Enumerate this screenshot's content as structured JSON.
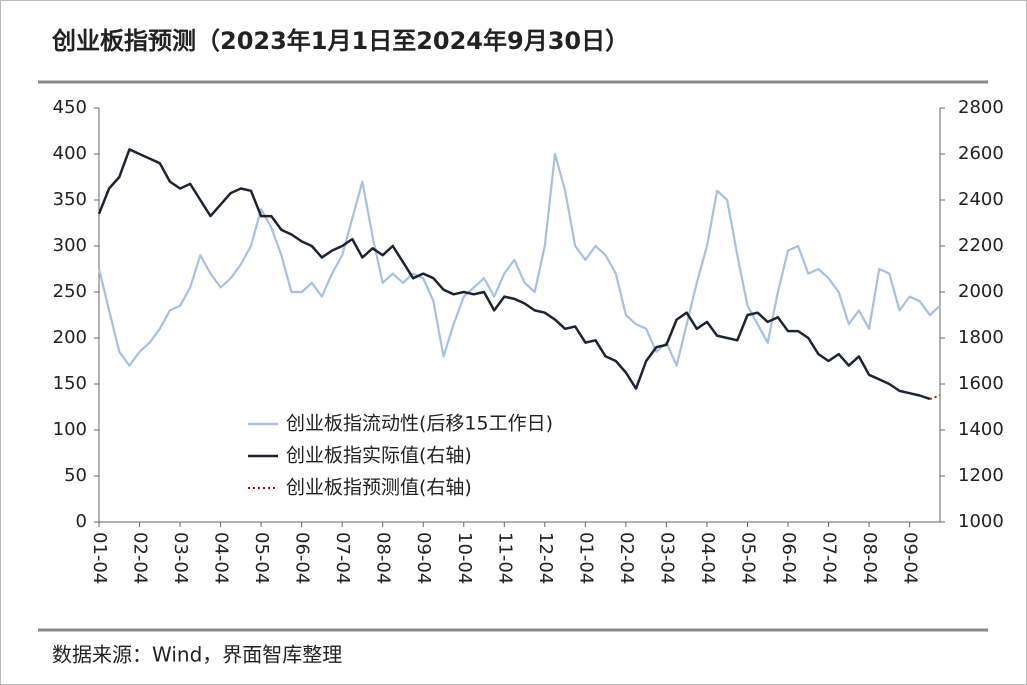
{
  "chart_data": {
    "type": "line",
    "title": "创业板指预测（2023年1月1日至2024年9月30日）",
    "source": "数据来源：Wind，界面智库整理",
    "categories": [
      "01-04",
      null,
      null,
      null,
      "02-04",
      null,
      null,
      null,
      "03-04",
      null,
      null,
      null,
      "04-04",
      null,
      null,
      null,
      "05-04",
      null,
      null,
      null,
      "06-04",
      null,
      null,
      null,
      "07-04",
      null,
      null,
      null,
      "08-04",
      null,
      null,
      null,
      "09-04",
      null,
      null,
      null,
      "10-04",
      null,
      null,
      null,
      "11-04",
      null,
      null,
      null,
      "12-04",
      null,
      null,
      null,
      "01-04",
      null,
      null,
      null,
      "02-04",
      null,
      null,
      null,
      "03-04",
      null,
      null,
      null,
      "04-04",
      null,
      null,
      null,
      "05-04",
      null,
      null,
      null,
      "06-04",
      null,
      null,
      null,
      "07-04",
      null,
      null,
      null,
      "08-04",
      null,
      null,
      null,
      "09-04",
      null,
      null,
      null
    ],
    "series": [
      {
        "name": "创业板指流动性(后移15工作日)",
        "color": "#a9bfdf",
        "axis": "y",
        "style": "solid",
        "values": [
          275,
          230,
          185,
          170,
          185,
          195,
          210,
          230,
          235,
          255,
          290,
          270,
          255,
          265,
          280,
          300,
          340,
          320,
          290,
          250,
          250,
          260,
          245,
          270,
          290,
          330,
          370,
          310,
          260,
          270,
          260,
          270,
          265,
          240,
          180,
          215,
          245,
          255,
          265,
          245,
          270,
          285,
          260,
          250,
          300,
          400,
          360,
          300,
          285,
          300,
          290,
          270,
          225,
          215,
          210,
          185,
          195,
          170,
          215,
          260,
          300,
          360,
          350,
          290,
          235,
          215,
          195,
          250,
          295,
          300,
          270,
          275,
          265,
          250,
          215,
          230,
          210,
          275,
          270,
          230,
          245,
          240,
          225,
          235
        ]
      },
      {
        "name": "创业板指实际值(右轴)",
        "color": "#1c2433",
        "axis": "y2",
        "style": "solid",
        "values": [
          2340,
          2450,
          2500,
          2620,
          2600,
          2580,
          2560,
          2480,
          2450,
          2470,
          2400,
          2330,
          2380,
          2430,
          2450,
          2440,
          2330,
          2330,
          2270,
          2250,
          2220,
          2200,
          2150,
          2180,
          2200,
          2230,
          2150,
          2190,
          2160,
          2200,
          2130,
          2060,
          2080,
          2060,
          2010,
          1990,
          2000,
          1990,
          2000,
          1920,
          1980,
          1970,
          1950,
          1920,
          1910,
          1880,
          1840,
          1850,
          1780,
          1790,
          1720,
          1700,
          1650,
          1580,
          1700,
          1760,
          1770,
          1880,
          1910,
          1840,
          1870,
          1810,
          1800,
          1790,
          1900,
          1910,
          1870,
          1890,
          1830,
          1830,
          1800,
          1730,
          1700,
          1730,
          1680,
          1720,
          1640,
          1620,
          1600,
          1570,
          1560,
          1550,
          1535,
          null
        ]
      },
      {
        "name": "创业板指预测值(右轴)",
        "color": "#c00000",
        "axis": "y2",
        "style": "dotted",
        "values": [
          null,
          null,
          null,
          null,
          null,
          null,
          null,
          null,
          null,
          null,
          null,
          null,
          null,
          null,
          null,
          null,
          null,
          null,
          null,
          null,
          null,
          null,
          null,
          null,
          null,
          null,
          null,
          null,
          null,
          null,
          null,
          null,
          null,
          null,
          null,
          null,
          null,
          null,
          null,
          null,
          null,
          null,
          null,
          null,
          null,
          null,
          null,
          null,
          null,
          null,
          null,
          null,
          null,
          null,
          null,
          null,
          null,
          null,
          null,
          null,
          null,
          null,
          null,
          null,
          null,
          null,
          null,
          null,
          null,
          null,
          null,
          null,
          null,
          null,
          null,
          null,
          null,
          null,
          null,
          null,
          null,
          null,
          1535,
          1550
        ]
      }
    ],
    "ylim": [
      0,
      450
    ],
    "yticks": [
      0,
      50,
      100,
      150,
      200,
      250,
      300,
      350,
      400,
      450
    ],
    "y2lim": [
      1000,
      2800
    ],
    "y2ticks": [
      1000,
      1200,
      1400,
      1600,
      1800,
      2000,
      2200,
      2400,
      2600,
      2800
    ],
    "grid": false,
    "legend": "lower left"
  }
}
